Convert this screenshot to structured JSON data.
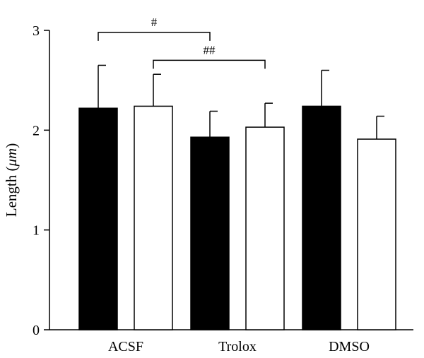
{
  "chart_data": {
    "type": "bar",
    "categories": [
      "ACSF",
      "Trolox",
      "DMSO"
    ],
    "ylabel_prefix": "Length (",
    "ylabel_unit": "μm",
    "ylabel_suffix": ")",
    "ylim": [
      0,
      3
    ],
    "yticks": [
      0,
      1,
      2,
      3
    ],
    "grid": false,
    "legend": "none",
    "series": [
      {
        "fill": "#000000",
        "values": [
          2.22,
          1.93,
          2.24
        ],
        "errors": [
          0.43,
          0.26,
          0.36
        ]
      },
      {
        "fill": "#ffffff",
        "values": [
          2.24,
          2.03,
          1.91
        ],
        "errors": [
          0.32,
          0.24,
          0.23
        ]
      }
    ],
    "significance": [
      {
        "label": "#",
        "from_category": 0,
        "from_series": 0,
        "to_category": 1,
        "to_series": 0,
        "level": 2.98
      },
      {
        "label": "##",
        "from_category": 0,
        "from_series": 1,
        "to_category": 1,
        "to_series": 1,
        "level": 2.7
      }
    ]
  }
}
